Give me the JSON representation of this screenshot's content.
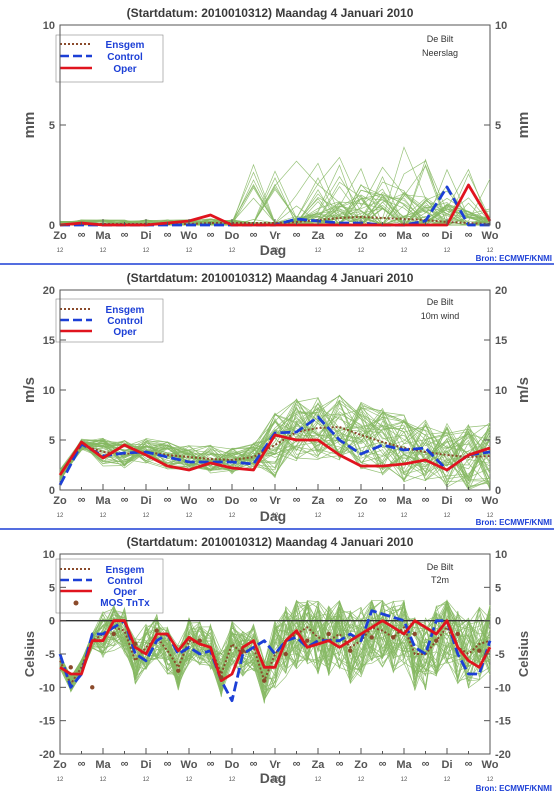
{
  "chart_data": [
    {
      "type": "line",
      "title": "(Startdatum: 2010010312)   Maandag    4 Januari   2010",
      "station": "De Bilt",
      "variable": "Neerslag",
      "ylabel": "mm",
      "xlabel": "Dag",
      "ylim": [
        0,
        10
      ],
      "yticks": [
        0,
        5,
        10
      ],
      "day_labels": [
        "Zo",
        "Ma",
        "Di",
        "Wo",
        "Do",
        "Vr",
        "Za",
        "Zo",
        "Ma",
        "Di",
        "Wo"
      ],
      "legend": [
        "Ensgem",
        "Control",
        "Oper"
      ],
      "credit": "Bron: ECMWF/KNMI",
      "x_days": [
        0,
        0.5,
        1,
        1.5,
        2,
        2.5,
        3,
        3.5,
        4,
        4.5,
        5,
        5.5,
        6,
        6.5,
        7,
        7.5,
        8,
        8.5,
        9,
        9.5,
        10
      ],
      "series": [
        {
          "name": "Ensgem",
          "values": [
            0,
            0.05,
            0.05,
            0.05,
            0.05,
            0.05,
            0.05,
            0.1,
            0.1,
            0.1,
            0.1,
            0.15,
            0.25,
            0.35,
            0.4,
            0.35,
            0.3,
            0.25,
            0.15,
            0.1,
            0.05
          ]
        },
        {
          "name": "Control",
          "values": [
            0,
            0,
            0,
            0,
            0,
            0,
            0,
            0,
            0,
            0,
            0,
            0.3,
            0.2,
            0.1,
            0.1,
            0,
            0,
            0.2,
            1.9,
            0,
            0
          ]
        },
        {
          "name": "Oper",
          "values": [
            0,
            0.1,
            0,
            0,
            0,
            0.1,
            0.2,
            0.5,
            0,
            0,
            0,
            0,
            0,
            0,
            0,
            0,
            0,
            0,
            0,
            2.0,
            0.2
          ]
        }
      ],
      "ensemble_range": [
        0,
        4.5
      ]
    },
    {
      "type": "line",
      "title": "(Startdatum: 2010010312)   Maandag    4 Januari   2010",
      "station": "De Bilt",
      "variable": "10m wind",
      "ylabel": "m/s",
      "xlabel": "Dag",
      "ylim": [
        0,
        20
      ],
      "yticks": [
        0,
        5,
        10,
        15,
        20
      ],
      "day_labels": [
        "Zo",
        "Ma",
        "Di",
        "Wo",
        "Do",
        "Vr",
        "Za",
        "Zo",
        "Ma",
        "Di",
        "Wo"
      ],
      "legend": [
        "Ensgem",
        "Control",
        "Oper"
      ],
      "credit": "Bron: ECMWF/KNMI",
      "x_days": [
        0,
        0.5,
        1,
        1.5,
        2,
        2.5,
        3,
        3.5,
        4,
        4.5,
        5,
        5.5,
        6,
        6.5,
        7,
        7.5,
        8,
        8.5,
        9,
        9.5,
        10
      ],
      "series": [
        {
          "name": "Ensgem",
          "values": [
            1.5,
            4.5,
            3.8,
            3.6,
            3.8,
            3.5,
            3.3,
            3.1,
            3.0,
            3.3,
            4.5,
            5.8,
            6.2,
            6.3,
            5.5,
            4.8,
            4.2,
            3.8,
            3.5,
            3.3,
            3.4
          ]
        },
        {
          "name": "Control",
          "values": [
            0.5,
            4.6,
            3.4,
            3.7,
            3.8,
            3.3,
            2.8,
            2.8,
            2.8,
            2.6,
            5.7,
            5.8,
            7.3,
            5.0,
            3.6,
            4.5,
            4.0,
            4.2,
            2.0,
            3.5,
            3.8
          ]
        },
        {
          "name": "Oper",
          "values": [
            1.5,
            4.8,
            3.2,
            4.5,
            3.5,
            2.4,
            2.0,
            2.7,
            2.2,
            2.0,
            5.5,
            5.0,
            5.0,
            3.5,
            2.4,
            2.4,
            2.6,
            3.0,
            2.0,
            3.5,
            4.2
          ]
        }
      ],
      "ensemble_range": [
        0,
        12.5
      ]
    },
    {
      "type": "line",
      "title": "(Startdatum: 2010010312)   Maandag    4 Januari   2010",
      "station": "De Bilt",
      "variable": "T2m",
      "ylabel": "Celsius",
      "xlabel": "Dag",
      "ylim": [
        -20,
        10
      ],
      "yticks": [
        -20,
        -15,
        -10,
        -5,
        0,
        5,
        10
      ],
      "day_labels": [
        "Zo",
        "Ma",
        "Di",
        "Wo",
        "Do",
        "Vr",
        "Za",
        "Zo",
        "Ma",
        "Di",
        "Wo"
      ],
      "legend": [
        "Ensgem",
        "Control",
        "Oper",
        "MOS TnTx"
      ],
      "credit": "Bron: ECMWF/KNMI",
      "x_days": [
        0,
        0.25,
        0.5,
        0.75,
        1,
        1.25,
        1.5,
        1.75,
        2,
        2.25,
        2.5,
        2.75,
        3,
        3.25,
        3.5,
        3.75,
        4,
        4.25,
        4.5,
        4.75,
        5,
        5.25,
        5.5,
        5.75,
        6,
        6.25,
        6.5,
        6.75,
        7,
        7.25,
        7.5,
        7.75,
        8,
        8.25,
        8.5,
        8.75,
        9,
        9.25,
        9.5,
        9.75,
        10
      ],
      "series": [
        {
          "name": "Ensgem",
          "values": [
            -6,
            -9.5,
            -7,
            -3,
            -2,
            -1,
            -1.5,
            -6,
            -4,
            -2.5,
            -4.5,
            -7,
            -3,
            -3.5,
            -4,
            -8,
            -3.5,
            -5,
            -4,
            -9,
            -5,
            -3,
            -2,
            -1,
            -2.5,
            -3,
            -2,
            -4,
            -3,
            -1,
            -1.5,
            -2.5,
            -1,
            -5,
            -5,
            -3,
            -1,
            -4,
            -5,
            -3.5,
            -3
          ]
        },
        {
          "name": "Control",
          "values": [
            -5,
            -10,
            -8,
            -2,
            -2,
            -1,
            0,
            -5,
            -6,
            -3,
            -2,
            -5,
            -4,
            -5,
            -4.5,
            -9,
            -12,
            -5,
            -4,
            -3,
            -5,
            -3,
            -2.5,
            -4,
            -3,
            -3,
            -3,
            -2,
            -3,
            1.5,
            1,
            0.5,
            0,
            -4,
            -5,
            0,
            0,
            -5,
            -8,
            -8,
            -3
          ]
        },
        {
          "name": "Oper",
          "values": [
            -7,
            -8,
            -8,
            -3,
            -3,
            0,
            0,
            -4,
            -5,
            -2,
            -2,
            -4.5,
            -2.5,
            -3.5,
            -4,
            -9,
            -8,
            -4,
            -3,
            -7,
            -7,
            -3,
            -1.5,
            -4,
            -3.5,
            -3,
            -4,
            -3,
            -2,
            -1,
            0,
            -1,
            -2,
            0,
            -1,
            -2,
            0,
            -4,
            -6,
            -7,
            -4
          ]
        }
      ],
      "mos_tntx": [
        -7,
        -10,
        -2,
        -3.5,
        -1.5,
        -7.5,
        -3,
        -8.5,
        -4.5,
        -9,
        -5,
        -3,
        -2,
        -4.5,
        -2.5,
        -2.5,
        -2,
        -3,
        -2,
        -4.5
      ],
      "ensemble_range": [
        -16,
        3
      ]
    }
  ]
}
